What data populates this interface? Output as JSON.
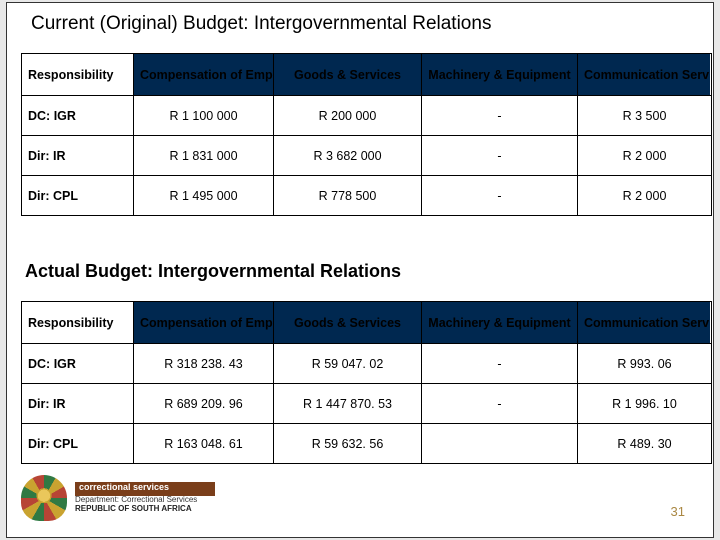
{
  "titles": {
    "current": "Current (Original) Budget: Intergovernmental Relations",
    "actual": "Actual Budget: Intergovernmental Relations"
  },
  "headers": {
    "c1": "Responsibility",
    "c2": "Compensation of Employees",
    "c3": "Goods & Services",
    "c4": "Machinery & Equipment",
    "c5": "Communication Serv"
  },
  "tableCurrent": {
    "rows": [
      {
        "resp": "DC: IGR",
        "v2": "R 1 100 000",
        "v3": "R 200 000",
        "v4": "-",
        "v5": "R 3 500"
      },
      {
        "resp": "Dir: IR",
        "v2": "R 1 831 000",
        "v3": "R 3 682 000",
        "v4": "-",
        "v5": "R 2 000"
      },
      {
        "resp": "Dir: CPL",
        "v2": "R 1 495 000",
        "v3": "R 778 500",
        "v4": "-",
        "v5": "R 2 000"
      }
    ]
  },
  "tableActual": {
    "rows": [
      {
        "resp": "DC: IGR",
        "v2": "R 318 238. 43",
        "v3": "R 59 047. 02",
        "v4": "-",
        "v5": "R 993. 06"
      },
      {
        "resp": "Dir: IR",
        "v2": "R 689 209. 96",
        "v3": "R 1 447 870. 53",
        "v4": "-",
        "v5": "R 1 996. 10"
      },
      {
        "resp": "Dir: CPL",
        "v2": "R 163 048. 61",
        "v3": "R 59 632. 56",
        "v4": "",
        "v5": "R 489. 30"
      }
    ]
  },
  "logo": {
    "bar": "correctional services",
    "dept": "Department: Correctional Services",
    "rsa": "REPUBLIC OF SOUTH AFRICA"
  },
  "pageNumber": "31"
}
